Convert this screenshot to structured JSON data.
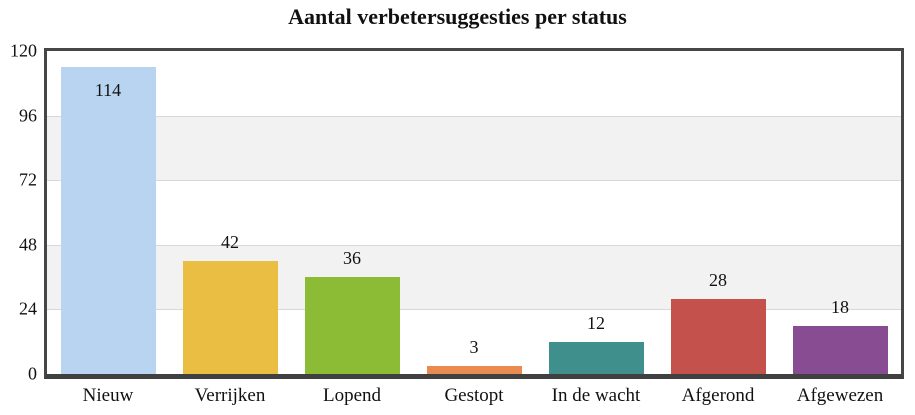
{
  "chart_data": {
    "type": "bar",
    "title": "Aantal verbetersuggesties per status",
    "categories": [
      "Nieuw",
      "Verrijken",
      "Lopend",
      "Gestopt",
      "In de wacht",
      "Afgerond",
      "Afgewezen"
    ],
    "values": [
      114,
      42,
      36,
      3,
      12,
      28,
      18
    ],
    "bar_colors": [
      "#b8d4f0",
      "#eabd43",
      "#8cbb36",
      "#e98b50",
      "#3f908d",
      "#c5514d",
      "#884c93"
    ],
    "xlabel": "",
    "ylabel": "",
    "ylim": [
      0,
      120
    ],
    "yticks": [
      0,
      24,
      48,
      72,
      96,
      120
    ],
    "grid": "horizontal-bands",
    "band_fill": "#f2f2f2",
    "gridline_color": "#d8d8d8",
    "frame_color": "#464646",
    "legend": "none",
    "value_labels": "shown"
  }
}
